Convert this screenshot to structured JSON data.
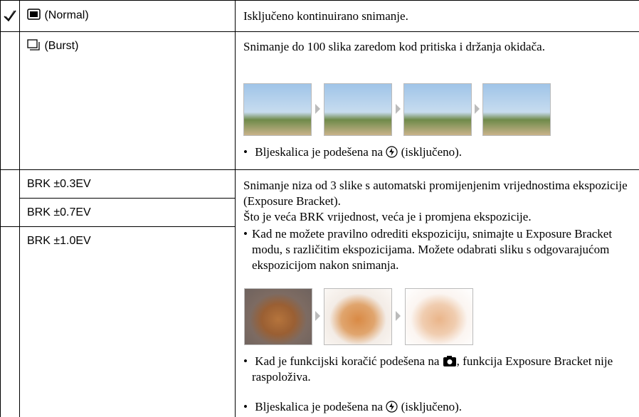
{
  "table": {
    "rows": [
      {
        "mode": "(Normal)",
        "description": "Isključeno kontinuirano snimanje."
      },
      {
        "mode": "(Burst)",
        "description": "Snimanje do 100 slika zaredom kod pritiska i držanja okidača.",
        "note": {
          "before": "Bljeskalica je podešena na",
          "after": "(isključeno)."
        }
      },
      {
        "modes": [
          "BRK ±0.3EV",
          "BRK ±0.7EV",
          "BRK ±1.0EV"
        ],
        "description": [
          "Snimanje niza od 3 slike s automatski promijenjenim vrijednostima ekspozicije (Exposure Bracket).",
          "Što je veća BRK vrijednost, veća je i promjena ekspozicije."
        ],
        "tip": "Kad ne možete pravilno odrediti ekspoziciju, snimajte u Exposure Bracket modu, s različitim ekspozicijama. Možete odabrati sliku s odgovarajućom ekspozicijom nakon snimanja.",
        "note1": {
          "before": "Kad je funkcijski koračić podešena na",
          "after": ", funkcija Exposure Bracket nije raspoloživa."
        },
        "note2": {
          "before": "Bljeskalica je podešena na",
          "after": "(isključeno)."
        }
      }
    ]
  }
}
